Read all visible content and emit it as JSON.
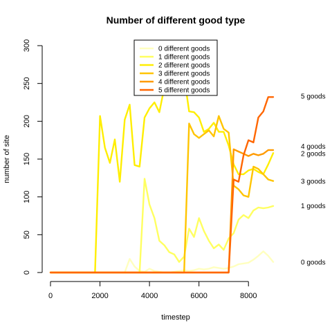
{
  "chart_data": {
    "type": "line",
    "title": "Number of different good type",
    "xlabel": "timestep",
    "ylabel": "number of site",
    "xlim": [
      0,
      9000
    ],
    "ylim": [
      0,
      300
    ],
    "x_ticks": [
      0,
      2000,
      4000,
      6000,
      8000
    ],
    "y_ticks": [
      0,
      50,
      100,
      150,
      200,
      250,
      300
    ],
    "legend_position": "top-center",
    "x": [
      0,
      200,
      400,
      600,
      800,
      1000,
      1200,
      1400,
      1600,
      1800,
      2000,
      2200,
      2400,
      2600,
      2800,
      3000,
      3200,
      3400,
      3600,
      3800,
      4000,
      4200,
      4400,
      4600,
      4800,
      5000,
      5200,
      5400,
      5600,
      5800,
      6000,
      6200,
      6400,
      6600,
      6800,
      7000,
      7200,
      7400,
      7600,
      7800,
      8000,
      8200,
      8400,
      8600,
      8800,
      9000
    ],
    "series": [
      {
        "name": "0 different goods",
        "end_label": "0 goods",
        "color": "#ffffbf",
        "values": [
          0,
          0,
          0,
          0,
          0,
          0,
          0,
          0,
          0,
          0,
          0,
          0,
          0,
          0,
          0,
          0,
          18,
          8,
          2,
          1,
          5,
          2,
          1,
          0,
          0,
          1,
          2,
          3,
          2,
          3,
          5,
          4,
          5,
          7,
          6,
          5,
          6,
          8,
          11,
          12,
          13,
          17,
          22,
          28,
          22,
          14
        ]
      },
      {
        "name": "1 different goods",
        "end_label": "1 goods",
        "color": "#ffff60",
        "values": [
          0,
          0,
          0,
          0,
          0,
          0,
          0,
          0,
          0,
          0,
          0,
          0,
          0,
          0,
          0,
          0,
          0,
          0,
          0,
          124,
          90,
          72,
          42,
          36,
          27,
          24,
          14,
          21,
          58,
          47,
          72,
          55,
          42,
          32,
          37,
          30,
          45,
          52,
          70,
          76,
          72,
          82,
          86,
          85,
          86,
          88
        ]
      },
      {
        "name": "2 different goods",
        "end_label": "2 goods",
        "color": "#ffee00",
        "values": [
          0,
          0,
          0,
          0,
          0,
          0,
          0,
          0,
          0,
          0,
          207,
          165,
          145,
          176,
          120,
          202,
          222,
          142,
          140,
          205,
          217,
          225,
          212,
          245,
          262,
          262,
          270,
          260,
          213,
          212,
          205,
          186,
          190,
          198,
          186,
          186,
          168,
          143,
          130,
          130,
          135,
          137,
          133,
          130,
          143,
          158
        ]
      },
      {
        "name": "3 different goods",
        "end_label": "3 goods",
        "color": "#ffc400",
        "values": [
          0,
          0,
          0,
          0,
          0,
          0,
          0,
          0,
          0,
          0,
          0,
          0,
          0,
          0,
          0,
          0,
          0,
          0,
          0,
          0,
          0,
          0,
          0,
          0,
          0,
          0,
          0,
          0,
          197,
          183,
          178,
          183,
          188,
          180,
          207,
          190,
          185,
          115,
          110,
          102,
          100,
          140,
          137,
          130,
          123,
          121
        ]
      },
      {
        "name": "4 different goods",
        "end_label": "4 goods",
        "color": "#ff9a00",
        "values": [
          0,
          0,
          0,
          0,
          0,
          0,
          0,
          0,
          0,
          0,
          0,
          0,
          0,
          0,
          0,
          0,
          0,
          0,
          0,
          0,
          0,
          0,
          0,
          0,
          0,
          0,
          0,
          0,
          0,
          0,
          0,
          0,
          0,
          0,
          0,
          0,
          0,
          163,
          160,
          157,
          154,
          157,
          155,
          157,
          162,
          162
        ]
      },
      {
        "name": "5 different goods",
        "end_label": "5 goods",
        "color": "#ff6600",
        "values": [
          0,
          0,
          0,
          0,
          0,
          0,
          0,
          0,
          0,
          0,
          0,
          0,
          0,
          0,
          0,
          0,
          0,
          0,
          0,
          0,
          0,
          0,
          0,
          0,
          0,
          0,
          0,
          0,
          0,
          0,
          0,
          0,
          0,
          0,
          0,
          0,
          0,
          123,
          120,
          155,
          175,
          172,
          205,
          213,
          232,
          232
        ]
      }
    ]
  }
}
